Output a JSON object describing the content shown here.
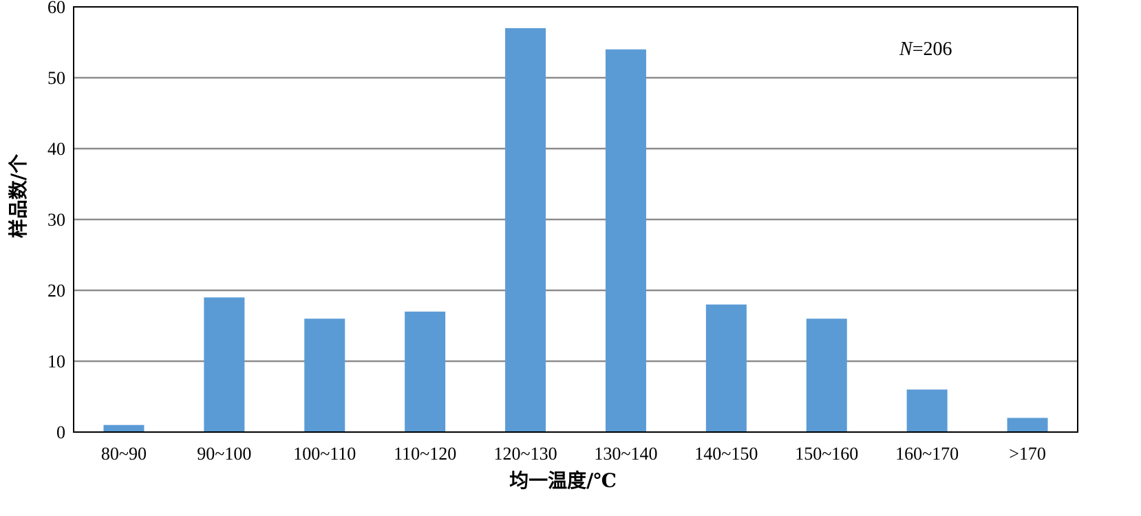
{
  "chart_data": {
    "type": "bar",
    "categories": [
      "80~90",
      "90~100",
      "100~110",
      "110~120",
      "120~130",
      "130~140",
      "140~150",
      "150~160",
      "160~170",
      ">170"
    ],
    "series": [
      {
        "values": [
          1,
          19,
          16,
          17,
          57,
          54,
          18,
          16,
          6,
          2
        ]
      }
    ],
    "xlabel": "均一温度/℃",
    "ylabel": "样品数/个",
    "ylim": [
      0,
      60
    ],
    "yticks": [
      0,
      10,
      20,
      30,
      40,
      50,
      60
    ],
    "grid": true,
    "annotation": {
      "italic_part": "N",
      "rest": "=206"
    },
    "colors": {
      "bar": "#5b9bd5",
      "grid": "#8c8c8c",
      "axis": "#000000"
    }
  }
}
